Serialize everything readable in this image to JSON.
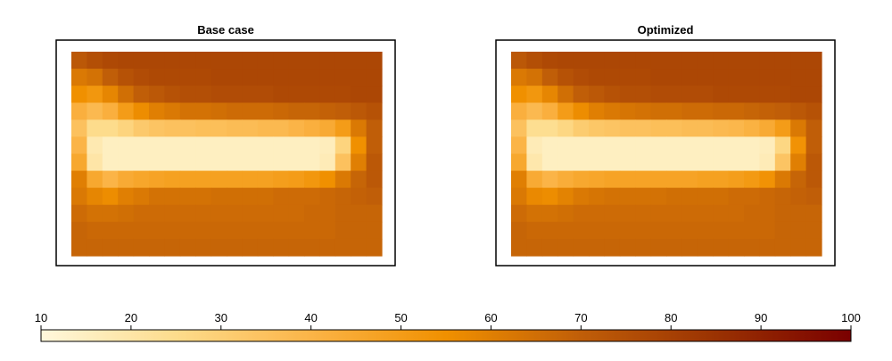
{
  "chart_data": {
    "type": "heatmap",
    "panels": [
      {
        "title": "Base case",
        "z": [
          [
            72,
            75,
            77,
            78,
            78,
            78,
            78,
            78,
            78,
            78,
            78,
            78,
            78,
            78,
            78,
            78,
            78,
            78,
            78,
            78
          ],
          [
            62,
            64,
            70,
            74,
            76,
            77,
            77,
            77,
            77,
            78,
            78,
            78,
            78,
            78,
            78,
            78,
            78,
            78,
            78,
            78
          ],
          [
            55,
            52,
            58,
            65,
            70,
            72,
            74,
            75,
            75,
            76,
            76,
            76,
            76,
            77,
            77,
            77,
            77,
            77,
            78,
            78
          ],
          [
            42,
            38,
            42,
            50,
            56,
            60,
            62,
            64,
            64,
            65,
            66,
            66,
            66,
            67,
            68,
            68,
            69,
            70,
            72,
            74
          ],
          [
            35,
            25,
            25,
            28,
            32,
            34,
            35,
            35,
            36,
            36,
            37,
            37,
            38,
            38,
            40,
            42,
            44,
            50,
            62,
            70
          ],
          [
            40,
            18,
            15,
            15,
            15,
            15,
            15,
            15,
            15,
            15,
            15,
            15,
            15,
            15,
            15,
            15,
            16,
            28,
            55,
            70
          ],
          [
            45,
            20,
            15,
            15,
            15,
            15,
            15,
            15,
            15,
            15,
            15,
            15,
            15,
            15,
            15,
            15,
            17,
            35,
            60,
            72
          ],
          [
            60,
            45,
            40,
            44,
            46,
            47,
            48,
            48,
            48,
            48,
            48,
            48,
            48,
            49,
            50,
            52,
            55,
            62,
            68,
            72
          ],
          [
            62,
            58,
            56,
            60,
            62,
            64,
            64,
            64,
            64,
            65,
            65,
            65,
            65,
            66,
            66,
            66,
            67,
            68,
            69,
            70
          ],
          [
            66,
            64,
            64,
            65,
            66,
            66,
            66,
            66,
            66,
            66,
            66,
            66,
            66,
            66,
            66,
            67,
            67,
            68,
            68,
            68
          ],
          [
            68,
            67,
            67,
            67,
            67,
            67,
            67,
            67,
            67,
            67,
            67,
            67,
            67,
            67,
            67,
            67,
            67,
            68,
            68,
            68
          ],
          [
            68,
            68,
            68,
            68,
            68,
            68,
            68,
            68,
            68,
            68,
            68,
            68,
            68,
            68,
            68,
            68,
            68,
            68,
            68,
            68
          ]
        ]
      },
      {
        "title": "Optimized",
        "z": [
          [
            72,
            75,
            77,
            78,
            78,
            78,
            78,
            78,
            78,
            78,
            78,
            78,
            78,
            78,
            78,
            78,
            78,
            78,
            78,
            78
          ],
          [
            62,
            64,
            70,
            74,
            76,
            77,
            77,
            77,
            77,
            78,
            78,
            78,
            78,
            78,
            78,
            78,
            78,
            78,
            78,
            78
          ],
          [
            55,
            52,
            58,
            65,
            70,
            72,
            74,
            75,
            75,
            76,
            76,
            76,
            76,
            77,
            77,
            77,
            77,
            77,
            78,
            78
          ],
          [
            42,
            38,
            42,
            50,
            56,
            60,
            62,
            63,
            64,
            65,
            65,
            66,
            66,
            67,
            67,
            68,
            69,
            70,
            72,
            74
          ],
          [
            35,
            24,
            24,
            27,
            31,
            33,
            34,
            35,
            35,
            36,
            36,
            37,
            37,
            38,
            39,
            41,
            44,
            50,
            62,
            70
          ],
          [
            40,
            17,
            15,
            15,
            15,
            15,
            15,
            15,
            15,
            15,
            15,
            15,
            15,
            15,
            15,
            15,
            16,
            27,
            54,
            70
          ],
          [
            45,
            19,
            15,
            15,
            15,
            15,
            15,
            15,
            15,
            15,
            15,
            15,
            15,
            15,
            15,
            15,
            17,
            34,
            60,
            72
          ],
          [
            60,
            44,
            40,
            43,
            45,
            46,
            47,
            47,
            47,
            47,
            47,
            47,
            48,
            48,
            49,
            51,
            54,
            62,
            68,
            72
          ],
          [
            62,
            57,
            56,
            59,
            62,
            63,
            64,
            64,
            64,
            64,
            65,
            65,
            65,
            65,
            66,
            66,
            67,
            68,
            69,
            70
          ],
          [
            66,
            64,
            64,
            65,
            66,
            66,
            66,
            66,
            66,
            66,
            66,
            66,
            66,
            66,
            66,
            67,
            67,
            68,
            68,
            68
          ],
          [
            68,
            67,
            67,
            67,
            67,
            67,
            67,
            67,
            67,
            67,
            67,
            67,
            67,
            67,
            67,
            67,
            67,
            68,
            68,
            68
          ],
          [
            68,
            68,
            68,
            68,
            68,
            68,
            68,
            68,
            68,
            68,
            68,
            68,
            68,
            68,
            68,
            68,
            68,
            68,
            68,
            68
          ]
        ]
      }
    ],
    "zlim": [
      10,
      100
    ],
    "zticks": [
      10,
      20,
      30,
      40,
      50,
      60,
      70,
      80,
      90,
      100
    ],
    "colorscale": [
      "#fff8dc",
      "#fddc8c",
      "#fbb447",
      "#f09000",
      "#c05e08",
      "#9a3202",
      "#7a0000"
    ]
  }
}
